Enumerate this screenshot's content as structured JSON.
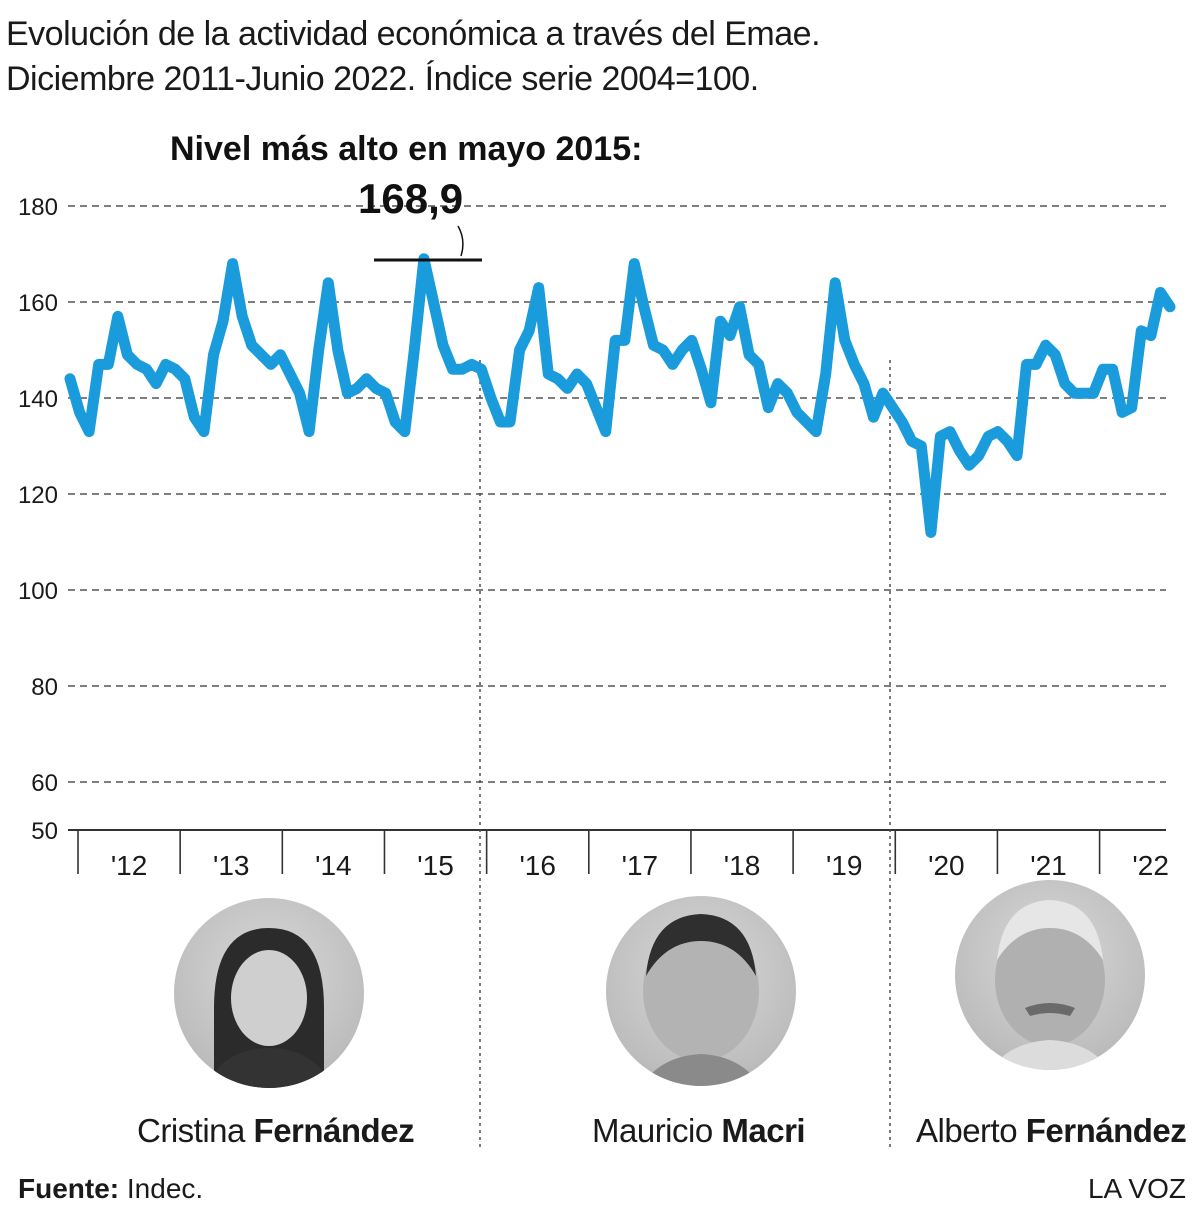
{
  "title": {
    "line1": "Evolución de la actividad económica a través del Emae.",
    "line2": "Diciembre 2011-Junio 2022. Índice serie 2004=100."
  },
  "annotation": {
    "label": "Nivel más alto en mayo 2015:",
    "value": "168,9"
  },
  "presidents": [
    {
      "first": "Cristina",
      "last": "Fernández"
    },
    {
      "first": "Mauricio",
      "last": "Macri"
    },
    {
      "first": "Alberto",
      "last": "Fernández"
    }
  ],
  "footer": {
    "source_label": "Fuente:",
    "source": "Indec.",
    "brand": "LA VOZ"
  },
  "colors": {
    "line": "#1a9cdc",
    "grid": "#555555",
    "text": "#1a1a1a"
  },
  "chart_data": {
    "type": "line",
    "yticks": [
      180,
      160,
      140,
      120,
      100,
      80,
      60,
      50
    ],
    "ylim": [
      50,
      180
    ],
    "xticks": [
      "'12",
      "'13",
      "'14",
      "'15",
      "'16",
      "'17",
      "'18",
      "'19",
      "'20",
      "'21",
      "'22"
    ],
    "grid": "horizontal dashed",
    "series": [
      {
        "values": [
          144,
          137,
          133,
          147,
          147,
          157,
          149,
          147,
          146,
          143,
          147,
          146,
          144,
          136,
          133,
          149,
          156,
          168,
          157,
          151,
          149,
          147,
          149,
          145,
          141,
          133,
          150,
          164,
          150,
          141,
          142,
          144,
          142,
          141,
          135,
          133,
          150,
          169,
          160,
          151,
          146,
          146,
          147,
          146,
          140,
          135,
          135,
          150,
          154,
          163,
          145,
          144,
          142,
          145,
          143,
          138,
          133,
          152,
          152,
          168,
          159,
          151,
          150,
          147,
          150,
          152,
          146,
          139,
          156,
          153,
          159,
          149,
          147,
          138,
          143,
          141,
          137,
          135,
          133,
          145,
          164,
          152,
          147,
          143,
          136,
          141,
          138,
          135,
          131,
          130,
          112,
          132,
          133,
          129,
          126,
          128,
          132,
          133,
          131,
          128,
          147,
          147,
          151,
          149,
          143,
          141,
          141,
          141,
          146,
          146,
          137,
          138,
          154,
          153,
          162,
          159
        ]
      }
    ],
    "peak": {
      "label": "mayo 2015",
      "value": 168.9
    }
  }
}
